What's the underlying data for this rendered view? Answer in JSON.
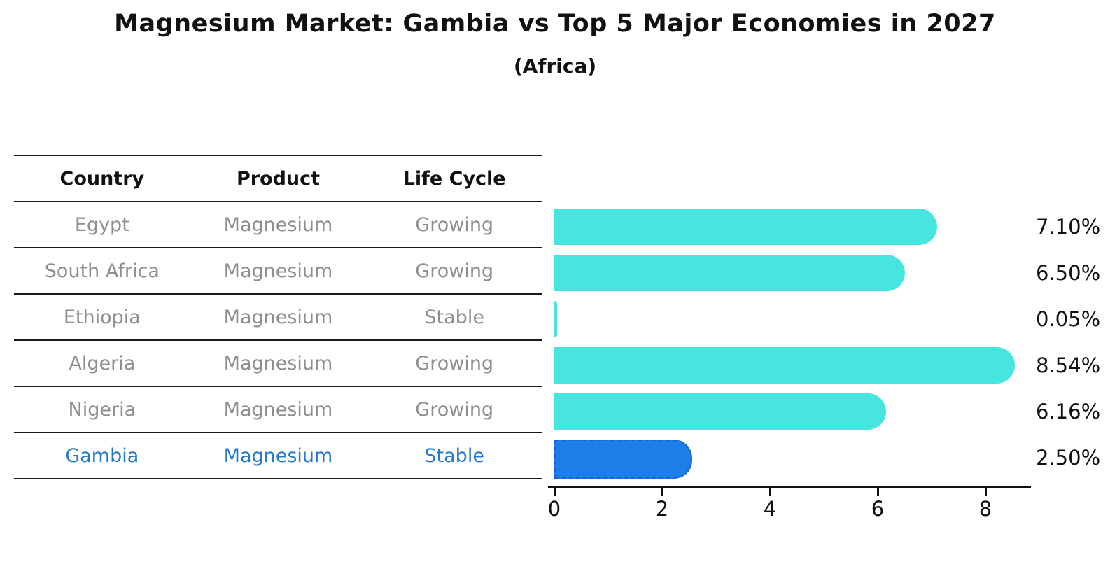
{
  "title": "Magnesium Market: Gambia vs Top 5 Major Economies in 2027",
  "subtitle": "(Africa)",
  "table": {
    "headers": [
      "Country",
      "Product",
      "Life Cycle"
    ],
    "rows": [
      {
        "country": "Egypt",
        "product": "Magnesium",
        "life_cycle": "Growing",
        "highlight": false
      },
      {
        "country": "South Africa",
        "product": "Magnesium",
        "life_cycle": "Growing",
        "highlight": false
      },
      {
        "country": "Ethiopia",
        "product": "Magnesium",
        "life_cycle": "Stable",
        "highlight": false
      },
      {
        "country": "Algeria",
        "product": "Magnesium",
        "life_cycle": "Growing",
        "highlight": false
      },
      {
        "country": "Nigeria",
        "product": "Magnesium",
        "life_cycle": "Growing",
        "highlight": false
      },
      {
        "country": "Gambia",
        "product": "Magnesium",
        "life_cycle": "Stable",
        "highlight": true
      }
    ]
  },
  "chart_data": {
    "type": "bar",
    "orientation": "horizontal",
    "title": "Magnesium Market: Gambia vs Top 5 Major Economies in 2027 (Africa)",
    "categories": [
      "Egypt",
      "South Africa",
      "Ethiopia",
      "Algeria",
      "Nigeria",
      "Gambia"
    ],
    "values": [
      7.1,
      6.5,
      0.05,
      8.54,
      6.16,
      2.5
    ],
    "value_labels": [
      "7.10%",
      "6.50%",
      "0.05%",
      "8.54%",
      "6.16%",
      "2.50%"
    ],
    "x_ticks": [
      "0",
      "2",
      "4",
      "6",
      "8"
    ],
    "xlim": [
      0,
      8.83
    ],
    "grid": false,
    "legend": "none",
    "bar_color": "#46e5df",
    "highlight_index": 5,
    "highlight_color": "#1e7ee8",
    "highlight_border_color": "#1565d6",
    "highlight_text_color": "#2878c8"
  }
}
